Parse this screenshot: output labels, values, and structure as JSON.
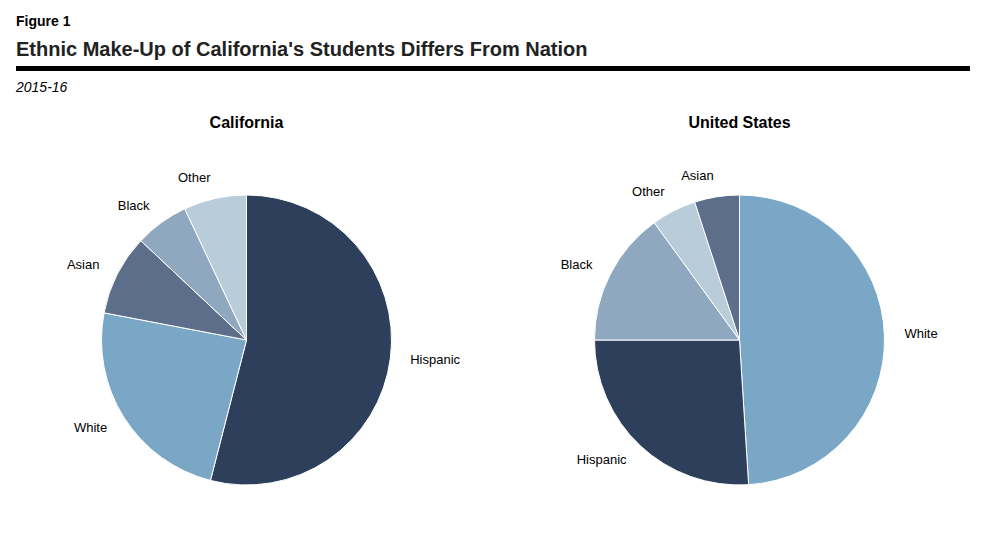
{
  "title": "Ethnic Make-Up of California's Students Differs From Nation",
  "subtitle": "2015-16",
  "annotations": [
    "Figure 1"
  ],
  "chart_data": [
    {
      "type": "pie",
      "title": "California",
      "categories": [
        "Hispanic",
        "White",
        "Asian",
        "Black",
        "Other"
      ],
      "values": [
        54,
        24,
        9,
        6,
        7
      ],
      "colors": [
        "#2E3F5C",
        "#7BA7C7",
        "#5C6E8A",
        "#8FA8C0",
        "#B8CDD9"
      ]
    },
    {
      "type": "pie",
      "title": "United States",
      "categories": [
        "White",
        "Hispanic",
        "Black",
        "Other",
        "Asian"
      ],
      "values": [
        49,
        26,
        15,
        5,
        5
      ],
      "colors": [
        "#7BA7C7",
        "#2E3F5C",
        "#8FA8C0",
        "#B8CDD9",
        "#5C6E8A"
      ]
    }
  ]
}
